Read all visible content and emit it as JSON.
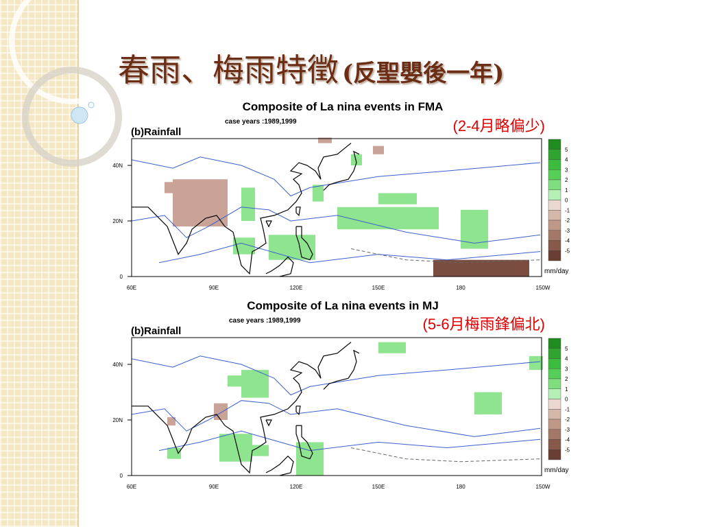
{
  "title": {
    "main": "春雨、梅雨特徵",
    "sub": "(反聖嬰後一年)"
  },
  "panels": [
    {
      "heading": "Composite of La nina events in FMA",
      "case_years": "case years :1989,1999",
      "note": "(2-4月略偏少)",
      "label": "(b)Rainfall",
      "lat_labels": [
        "40N",
        "20N",
        "0"
      ],
      "lon_labels": [
        "60E",
        "90E",
        "120E",
        "150E",
        "180",
        "150W"
      ],
      "colorbar": {
        "levels": [
          5,
          4,
          3,
          2,
          1,
          0,
          -1,
          -2,
          -3,
          -4,
          -5
        ],
        "unit": "mm/day",
        "colors": [
          "#1e8c1e",
          "#2fa52f",
          "#3cbc3c",
          "#55cf55",
          "#7fdf7f",
          "#b4efb4",
          "#ead8d0",
          "#d6b8aa",
          "#bf9888",
          "#a37868",
          "#86594b",
          "#6a3f33"
        ]
      }
    },
    {
      "heading": "Composite of La nina events in MJ",
      "case_years": "case years :1989,1999",
      "note": "(5-6月梅雨鋒偏北)",
      "label": "(b)Rainfall",
      "lat_labels": [
        "40N",
        "20N",
        "0"
      ],
      "lon_labels": [
        "60E",
        "90E",
        "120E",
        "150E",
        "180",
        "150W"
      ],
      "colorbar": {
        "levels": [
          5,
          4,
          3,
          2,
          1,
          0,
          -1,
          -2,
          -3,
          -4,
          -5
        ],
        "unit": "mm/day",
        "colors": [
          "#1e8c1e",
          "#2fa52f",
          "#3cbc3c",
          "#55cf55",
          "#7fdf7f",
          "#b4efb4",
          "#ead8d0",
          "#d6b8aa",
          "#bf9888",
          "#a37868",
          "#86594b",
          "#6a3f33"
        ]
      }
    }
  ]
}
